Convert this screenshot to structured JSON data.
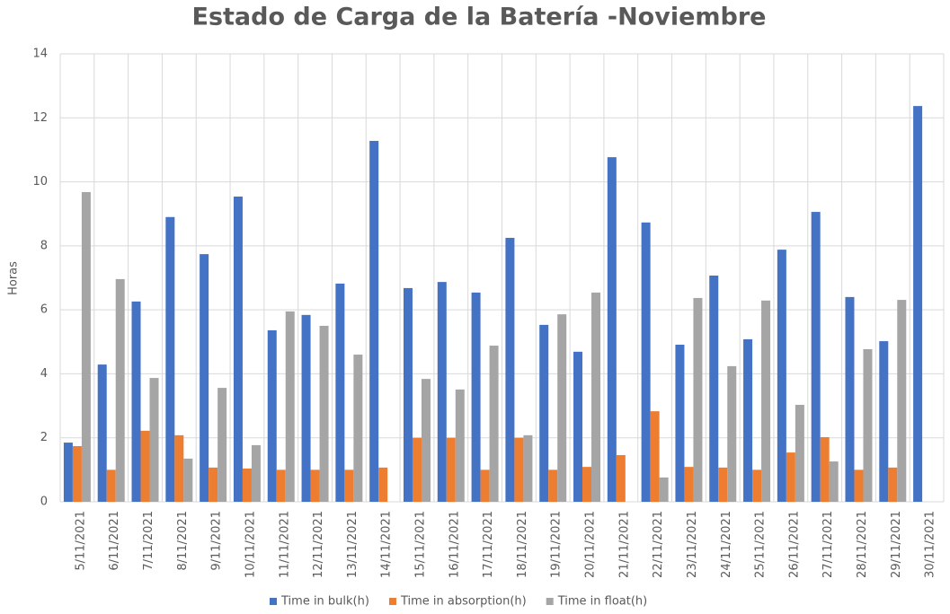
{
  "chart_data": {
    "type": "bar",
    "title": "Estado de Carga de la Batería -Noviembre",
    "y_label": "Horas",
    "categories": [
      "5/11/2021",
      "6/11/2021",
      "7/11/2021",
      "8/11/2021",
      "9/11/2021",
      "10/11/2021",
      "11/11/2021",
      "12/11/2021",
      "13/11/2021",
      "14/11/2021",
      "15/11/2021",
      "16/11/2021",
      "17/11/2021",
      "18/11/2021",
      "19/11/2021",
      "20/11/2021",
      "21/11/2021",
      "22/11/2021",
      "23/11/2021",
      "24/11/2021",
      "25/11/2021",
      "26/11/2021",
      "27/11/2021",
      "28/11/2021",
      "29/11/2021",
      "30/11/2021"
    ],
    "series": [
      {
        "name": "Time in bulk(h)",
        "color": "#4472c4",
        "values": [
          1.85,
          4.29,
          6.26,
          8.9,
          7.74,
          9.54,
          5.36,
          5.84,
          6.82,
          11.28,
          6.68,
          6.87,
          6.54,
          8.25,
          5.53,
          4.69,
          10.77,
          8.73,
          4.91,
          7.07,
          5.08,
          7.88,
          9.06,
          6.4,
          5.02,
          12.37
        ]
      },
      {
        "name": "Time in absorption(h)",
        "color": "#ed7d31",
        "values": [
          1.74,
          1.0,
          2.22,
          2.08,
          1.07,
          1.04,
          1.0,
          1.0,
          1.0,
          1.07,
          2.0,
          2.0,
          1.0,
          2.0,
          1.0,
          1.09,
          1.46,
          2.83,
          1.09,
          1.07,
          1.0,
          1.54,
          2.02,
          1.0,
          1.07,
          0
        ]
      },
      {
        "name": "Time in float(h)",
        "color": "#a5a5a5",
        "values": [
          9.68,
          6.96,
          3.87,
          1.35,
          3.56,
          1.77,
          5.95,
          5.5,
          4.6,
          0,
          3.84,
          3.51,
          4.88,
          2.08,
          5.86,
          6.54,
          0,
          0.76,
          6.37,
          4.24,
          6.29,
          3.03,
          1.26,
          4.77,
          6.31,
          0
        ]
      }
    ],
    "ylim": [
      0,
      14
    ],
    "yticks": [
      0,
      2,
      4,
      6,
      8,
      10,
      12,
      14
    ],
    "grid": true,
    "legend": "bottom"
  }
}
